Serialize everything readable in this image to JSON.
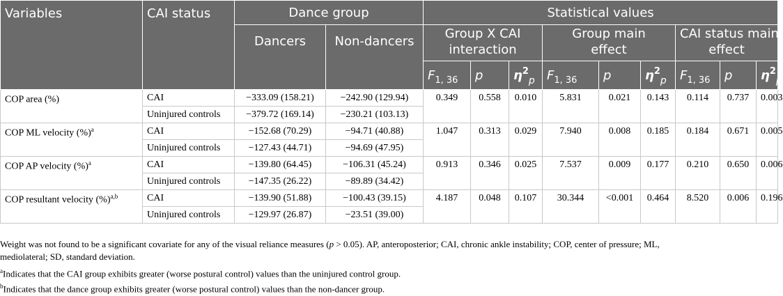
{
  "header": {
    "variables": "Variables",
    "cai_status": "CAI status",
    "dance_group": "Dance group",
    "statistical_values": "Statistical values",
    "dancers": "Dancers",
    "non_dancers": "Non-dancers",
    "interaction_l1": "Group X CAI",
    "interaction_l2": "interaction",
    "group_main_l1": "Group main",
    "group_main_l2": "effect",
    "cai_main_l1": "CAI status main",
    "cai_main_l2": "effect",
    "f_symbol": "F",
    "f_df": "1, 36",
    "p_symbol": "p",
    "eta_symbol": "η",
    "eta_sup": "2",
    "eta_sub": "p"
  },
  "rows": [
    {
      "variable": "COP area (%)",
      "variable_sup": "",
      "a": {
        "status": "CAI",
        "dancers": "−333.09 (158.21)",
        "non_dancers": "−242.90 (129.94)"
      },
      "b": {
        "status": "Uninjured controls",
        "dancers": "−379.72 (169.14)",
        "non_dancers": "−230.21 (103.13)"
      },
      "stats": [
        "0.349",
        "0.558",
        "0.010",
        "5.831",
        "0.021",
        "0.143",
        "0.114",
        "0.737",
        "0.003"
      ]
    },
    {
      "variable": "COP ML velocity (%)",
      "variable_sup": "a",
      "a": {
        "status": "CAI",
        "dancers": "−152.68 (70.29)",
        "non_dancers": "−94.71 (40.88)"
      },
      "b": {
        "status": "Uninjured controls",
        "dancers": "−127.43 (44.71)",
        "non_dancers": "−94.69 (47.95)"
      },
      "stats": [
        "1.047",
        "0.313",
        "0.029",
        "7.940",
        "0.008",
        "0.185",
        "0.184",
        "0.671",
        "0.005"
      ]
    },
    {
      "variable": "COP AP velocity (%)",
      "variable_sup": "a",
      "a": {
        "status": "CAI",
        "dancers": "−139.80 (64.45)",
        "non_dancers": "−106.31 (45.24)"
      },
      "b": {
        "status": "Uninjured controls",
        "dancers": "−147.35 (26.22)",
        "non_dancers": "−89.89 (34.42)"
      },
      "stats": [
        "0.913",
        "0.346",
        "0.025",
        "7.537",
        "0.009",
        "0.177",
        "0.210",
        "0.650",
        "0.006"
      ]
    },
    {
      "variable": "COP resultant velocity (%)",
      "variable_sup": "a,b",
      "a": {
        "status": "CAI",
        "dancers": "−139.90 (51.88)",
        "non_dancers": "−100.43 (39.15)"
      },
      "b": {
        "status": "Uninjured controls",
        "dancers": "−129.97 (26.87)",
        "non_dancers": "−23.51 (39.00)"
      },
      "stats": [
        "4.187",
        "0.048",
        "0.107",
        "30.344",
        "<0.001",
        "0.464",
        "8.520",
        "0.006",
        "0.196"
      ]
    }
  ],
  "notes": {
    "main_l1_pre": "Weight was not found to be a significant covariate for any of the visual reliance measures (",
    "main_l1_p": "p",
    "main_l1_post": " > 0.05). AP, anteroposterior; CAI, chronic ankle instability; COP, center of pressure; ML,",
    "main_l2": "mediolateral; SD, standard deviation.",
    "fn_a_mark": "a",
    "fn_a": "Indicates that the CAI group exhibits greater (worse postural control) values than the uninjured control group.",
    "fn_b_mark": "b",
    "fn_b": "Indicates that the dance group exhibits greater (worse postural control) values than the non-dancer group."
  }
}
